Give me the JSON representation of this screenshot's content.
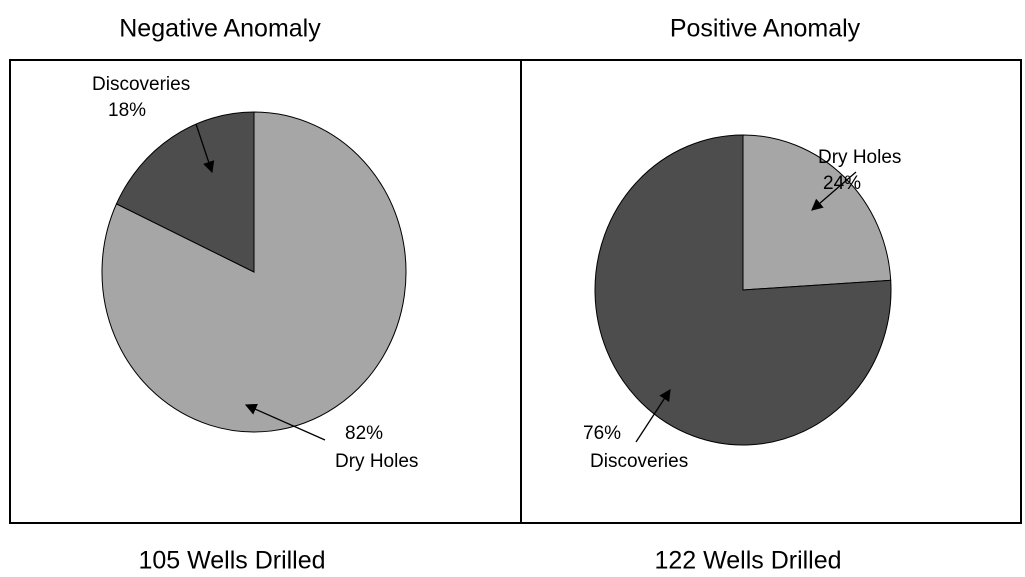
{
  "chart_data": [
    {
      "type": "pie",
      "title": "Negative Anomaly",
      "subtitle": "105 Wells Drilled",
      "categories": [
        "Dry Holes",
        "Discoveries"
      ],
      "values": [
        82,
        18
      ],
      "value_labels": [
        "82%",
        "18%"
      ],
      "colors": [
        "#a6a6a6",
        "#4d4d4d"
      ]
    },
    {
      "type": "pie",
      "title": "Positive Anomaly",
      "subtitle": "122 Wells Drilled",
      "categories": [
        "Dry Holes",
        "Discoveries"
      ],
      "values": [
        24,
        76
      ],
      "value_labels": [
        "24%",
        "76%"
      ],
      "colors": [
        "#a6a6a6",
        "#4d4d4d"
      ]
    }
  ]
}
